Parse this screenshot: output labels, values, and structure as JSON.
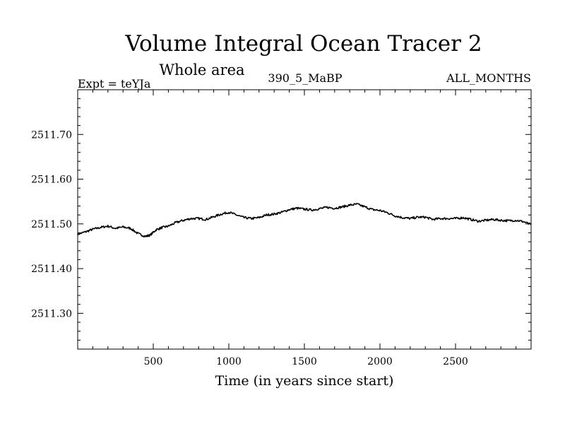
{
  "chart_data": {
    "type": "line",
    "title": "Volume Integral Ocean Tracer 2",
    "subtitle": "Whole area",
    "header_left": "Expt = teYJa",
    "header_center": "390_5_MaBP",
    "header_right": "ALL_MONTHS",
    "xlabel": "Time (in years since start)",
    "ylabel": "",
    "xlim": [
      0,
      3000
    ],
    "ylim": [
      2511.22,
      2511.8
    ],
    "xticks": [
      500,
      1000,
      1500,
      2000,
      2500
    ],
    "xtick_labels": [
      "500",
      "1000",
      "1500",
      "2000",
      "2500"
    ],
    "yticks": [
      2511.3,
      2511.4,
      2511.5,
      2511.6,
      2511.7
    ],
    "ytick_labels": [
      "2511.30",
      "2511.40",
      "2511.50",
      "2511.60",
      "2511.70"
    ],
    "grid": false,
    "series": [
      {
        "color": "#000000",
        "points": [
          [
            0,
            2511.477
          ],
          [
            50,
            2511.482
          ],
          [
            100,
            2511.488
          ],
          [
            150,
            2511.492
          ],
          [
            200,
            2511.495
          ],
          [
            250,
            2511.49
          ],
          [
            300,
            2511.493
          ],
          [
            350,
            2511.49
          ],
          [
            400,
            2511.478
          ],
          [
            450,
            2511.472
          ],
          [
            480,
            2511.475
          ],
          [
            520,
            2511.487
          ],
          [
            560,
            2511.492
          ],
          [
            600,
            2511.495
          ],
          [
            650,
            2511.503
          ],
          [
            700,
            2511.508
          ],
          [
            750,
            2511.512
          ],
          [
            800,
            2511.512
          ],
          [
            850,
            2511.51
          ],
          [
            900,
            2511.516
          ],
          [
            950,
            2511.522
          ],
          [
            1000,
            2511.526
          ],
          [
            1050,
            2511.52
          ],
          [
            1100,
            2511.514
          ],
          [
            1150,
            2511.512
          ],
          [
            1200,
            2511.514
          ],
          [
            1250,
            2511.52
          ],
          [
            1300,
            2511.522
          ],
          [
            1350,
            2511.526
          ],
          [
            1400,
            2511.532
          ],
          [
            1450,
            2511.535
          ],
          [
            1500,
            2511.533
          ],
          [
            1550,
            2511.531
          ],
          [
            1600,
            2511.534
          ],
          [
            1650,
            2511.537
          ],
          [
            1700,
            2511.535
          ],
          [
            1750,
            2511.538
          ],
          [
            1800,
            2511.542
          ],
          [
            1850,
            2511.544
          ],
          [
            1900,
            2511.538
          ],
          [
            1950,
            2511.532
          ],
          [
            2000,
            2511.53
          ],
          [
            2050,
            2511.525
          ],
          [
            2100,
            2511.518
          ],
          [
            2150,
            2511.514
          ],
          [
            2200,
            2511.512
          ],
          [
            2250,
            2511.515
          ],
          [
            2300,
            2511.515
          ],
          [
            2350,
            2511.51
          ],
          [
            2400,
            2511.512
          ],
          [
            2450,
            2511.512
          ],
          [
            2500,
            2511.512
          ],
          [
            2550,
            2511.514
          ],
          [
            2600,
            2511.51
          ],
          [
            2650,
            2511.506
          ],
          [
            2700,
            2511.508
          ],
          [
            2750,
            2511.51
          ],
          [
            2800,
            2511.508
          ],
          [
            2850,
            2511.507
          ],
          [
            2900,
            2511.508
          ],
          [
            2950,
            2511.505
          ],
          [
            3000,
            2511.498
          ]
        ]
      }
    ]
  }
}
